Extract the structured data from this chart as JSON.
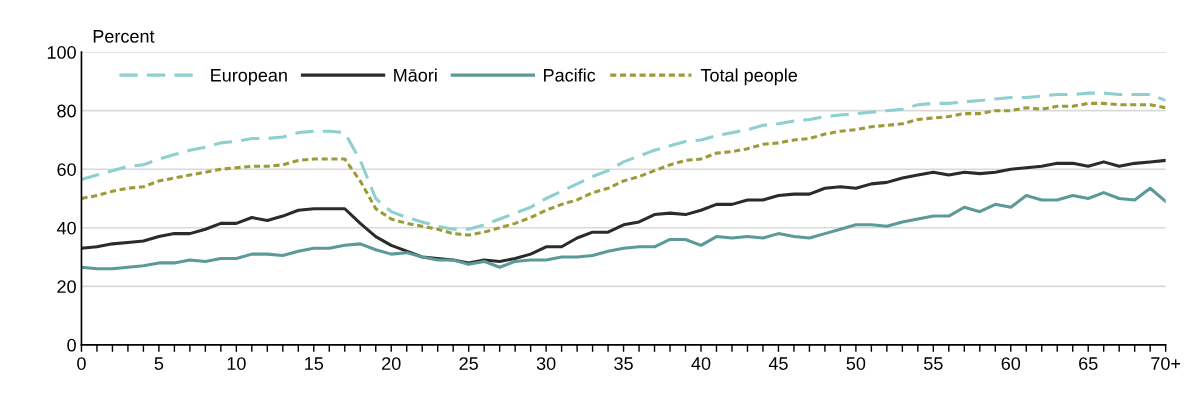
{
  "chart_data": {
    "type": "line",
    "ylabel": "Percent",
    "x": [
      0,
      1,
      2,
      3,
      4,
      5,
      6,
      7,
      8,
      9,
      10,
      11,
      12,
      13,
      14,
      15,
      16,
      17,
      18,
      19,
      20,
      21,
      22,
      23,
      24,
      25,
      26,
      27,
      28,
      29,
      30,
      31,
      32,
      33,
      34,
      35,
      36,
      37,
      38,
      39,
      40,
      41,
      42,
      43,
      44,
      45,
      46,
      47,
      48,
      49,
      50,
      51,
      52,
      53,
      54,
      55,
      56,
      57,
      58,
      59,
      60,
      61,
      62,
      63,
      64,
      65,
      66,
      67,
      68,
      69,
      70
    ],
    "series": [
      {
        "name": "European",
        "color": "#8ecfcf",
        "line_style": "dashed",
        "values": [
          56.5,
          58,
          59.5,
          61,
          61.5,
          63.5,
          65,
          66.5,
          67.5,
          69,
          69.5,
          70.5,
          70.5,
          71,
          72.5,
          73,
          73,
          72.5,
          63,
          50,
          45.5,
          43.5,
          42,
          40.5,
          39.5,
          39.5,
          41,
          43,
          45,
          47,
          50,
          52.5,
          55,
          57.5,
          59.5,
          62.5,
          64.5,
          66.5,
          68,
          69.5,
          70,
          71.5,
          72.5,
          73.5,
          75,
          75.5,
          76.5,
          77,
          78,
          78.5,
          79,
          79.5,
          80,
          80.5,
          82,
          82.5,
          82.5,
          83,
          83.5,
          84,
          84.5,
          84.5,
          85,
          85.5,
          85.5,
          86,
          86,
          85.5,
          85.5,
          85.5,
          83.5
        ]
      },
      {
        "name": "Māori",
        "color": "#2b2b2b",
        "line_style": "solid",
        "values": [
          33,
          33.5,
          34.5,
          35,
          35.5,
          37,
          38,
          38,
          39.5,
          41.5,
          41.5,
          43.5,
          42.5,
          44,
          46,
          46.5,
          46.5,
          46.5,
          41.5,
          37,
          34,
          32,
          30,
          29.5,
          29,
          28,
          29,
          28.5,
          29.5,
          31,
          33.5,
          33.5,
          36.5,
          38.5,
          38.5,
          41,
          42,
          44.5,
          45,
          44.5,
          46,
          48,
          48,
          49.5,
          49.5,
          51,
          51.5,
          51.5,
          53.5,
          54,
          53.5,
          55,
          55.5,
          57,
          58,
          59,
          58,
          59,
          58.5,
          59,
          60,
          60.5,
          61,
          62,
          62,
          61,
          62.5,
          61,
          62,
          62.5,
          63
        ]
      },
      {
        "name": "Pacific",
        "color": "#5b9a99",
        "line_style": "solid",
        "values": [
          26.5,
          26,
          26,
          26.5,
          27,
          28,
          28,
          29,
          28.5,
          29.5,
          29.5,
          31,
          31,
          30.5,
          32,
          33,
          33,
          34,
          34.5,
          32.5,
          31,
          31.5,
          30,
          29,
          29,
          27.5,
          28.5,
          26.5,
          28.5,
          29,
          29,
          30,
          30,
          30.5,
          32,
          33,
          33.5,
          33.5,
          36,
          36,
          34,
          37,
          36.5,
          37,
          36.5,
          38,
          37,
          36.5,
          38,
          39.5,
          41,
          41,
          40.5,
          42,
          43,
          44,
          44,
          47,
          45.5,
          48,
          47,
          51,
          49.5,
          49.5,
          51,
          50,
          52,
          50,
          49.5,
          53.5,
          49
        ]
      },
      {
        "name": "Total people",
        "color": "#9b9b37",
        "line_style": "dotted",
        "values": [
          50,
          51,
          52.5,
          53.5,
          54,
          56,
          57,
          58,
          59,
          60,
          60.5,
          61,
          61,
          61.5,
          63,
          63.5,
          63.5,
          63.5,
          56,
          46.5,
          43,
          41.5,
          40.5,
          39.5,
          38,
          37.5,
          38.5,
          40,
          41.5,
          43.5,
          46,
          48,
          49.5,
          52,
          53.5,
          56,
          57.5,
          59.5,
          61.5,
          63,
          63.5,
          65.5,
          66,
          67,
          68.5,
          69,
          70,
          70.5,
          72,
          73,
          73.5,
          74.5,
          75,
          75.5,
          77,
          77.5,
          78,
          79,
          79,
          80,
          80,
          81,
          80.5,
          81.5,
          81.5,
          82.5,
          82.5,
          82,
          82,
          82,
          81
        ]
      }
    ],
    "xlim": [
      0,
      70
    ],
    "ylim": [
      0,
      100
    ],
    "yticks": [
      0,
      20,
      40,
      60,
      80,
      100
    ],
    "xticks": [
      0,
      {
        "value": 1,
        "label": null
      },
      {
        "value": 2,
        "label": null
      },
      {
        "value": 3,
        "label": null
      },
      {
        "value": 4,
        "label": null
      },
      5,
      {
        "value": 6,
        "label": null
      },
      {
        "value": 7,
        "label": null
      },
      {
        "value": 8,
        "label": null
      },
      {
        "value": 9,
        "label": null
      },
      10,
      {
        "value": 11,
        "label": null
      },
      {
        "value": 12,
        "label": null
      },
      {
        "value": 13,
        "label": null
      },
      {
        "value": 14,
        "label": null
      },
      15,
      {
        "value": 16,
        "label": null
      },
      {
        "value": 17,
        "label": null
      },
      {
        "value": 18,
        "label": null
      },
      {
        "value": 19,
        "label": null
      },
      20,
      {
        "value": 21,
        "label": null
      },
      {
        "value": 22,
        "label": null
      },
      {
        "value": 23,
        "label": null
      },
      {
        "value": 24,
        "label": null
      },
      25,
      {
        "value": 26,
        "label": null
      },
      {
        "value": 27,
        "label": null
      },
      {
        "value": 28,
        "label": null
      },
      {
        "value": 29,
        "label": null
      },
      30,
      {
        "value": 31,
        "label": null
      },
      {
        "value": 32,
        "label": null
      },
      {
        "value": 33,
        "label": null
      },
      {
        "value": 34,
        "label": null
      },
      35,
      {
        "value": 36,
        "label": null
      },
      {
        "value": 37,
        "label": null
      },
      {
        "value": 38,
        "label": null
      },
      {
        "value": 39,
        "label": null
      },
      40,
      {
        "value": 41,
        "label": null
      },
      {
        "value": 42,
        "label": null
      },
      {
        "value": 43,
        "label": null
      },
      {
        "value": 44,
        "label": null
      },
      45,
      {
        "value": 46,
        "label": null
      },
      {
        "value": 47,
        "label": null
      },
      {
        "value": 48,
        "label": null
      },
      {
        "value": 49,
        "label": null
      },
      50,
      {
        "value": 51,
        "label": null
      },
      {
        "value": 52,
        "label": null
      },
      {
        "value": 53,
        "label": null
      },
      {
        "value": 54,
        "label": null
      },
      55,
      {
        "value": 56,
        "label": null
      },
      {
        "value": 57,
        "label": null
      },
      {
        "value": 58,
        "label": null
      },
      {
        "value": 59,
        "label": null
      },
      60,
      {
        "value": 61,
        "label": null
      },
      {
        "value": 62,
        "label": null
      },
      {
        "value": 63,
        "label": null
      },
      {
        "value": 64,
        "label": null
      },
      65,
      {
        "value": 66,
        "label": null
      },
      {
        "value": 67,
        "label": null
      },
      {
        "value": 68,
        "label": null
      },
      {
        "value": 69,
        "label": null
      },
      {
        "value": 70,
        "label": "70+"
      }
    ],
    "grid": "y",
    "legend": "top left",
    "marker": "none"
  }
}
